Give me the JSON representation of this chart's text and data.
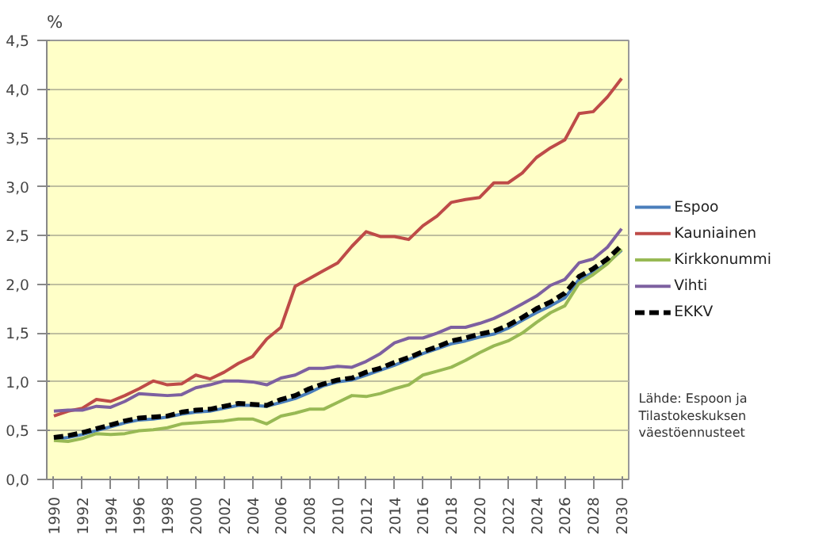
{
  "chart_data": {
    "type": "line",
    "ylabel": "%",
    "x": [
      1990,
      1991,
      1992,
      1993,
      1994,
      1995,
      1996,
      1997,
      1998,
      1999,
      2000,
      2001,
      2002,
      2003,
      2004,
      2005,
      2006,
      2007,
      2008,
      2009,
      2010,
      2011,
      2012,
      2013,
      2014,
      2015,
      2016,
      2017,
      2018,
      2019,
      2020,
      2021,
      2022,
      2023,
      2024,
      2025,
      2026,
      2027,
      2028,
      2029,
      2030
    ],
    "xlim": [
      1989.5,
      2030.5
    ],
    "xticks": [
      1990,
      1992,
      1994,
      1996,
      1998,
      2000,
      2002,
      2004,
      2006,
      2008,
      2010,
      2012,
      2014,
      2016,
      2018,
      2020,
      2022,
      2024,
      2026,
      2028,
      2030
    ],
    "ylim": [
      0,
      4.5
    ],
    "yticks": [
      {
        "value": 0,
        "label": "0,0"
      },
      {
        "value": 0.5,
        "label": "0,5"
      },
      {
        "value": 1,
        "label": "1,0"
      },
      {
        "value": 1.5,
        "label": "1,5"
      },
      {
        "value": 2,
        "label": "2,0"
      },
      {
        "value": 2.5,
        "label": "2,5"
      },
      {
        "value": 3,
        "label": "3,0"
      },
      {
        "value": 3.5,
        "label": "3,5"
      },
      {
        "value": 4,
        "label": "4,0"
      },
      {
        "value": 4.5,
        "label": "4,5"
      }
    ],
    "grid": "y",
    "legend": "right",
    "marker": "none",
    "series": [
      {
        "name": "Espoo",
        "color": "#4a7ebb",
        "values": [
          0.41,
          0.43,
          0.46,
          0.5,
          0.54,
          0.58,
          0.61,
          0.62,
          0.64,
          0.67,
          0.69,
          0.7,
          0.73,
          0.76,
          0.76,
          0.75,
          0.79,
          0.83,
          0.89,
          0.96,
          1.0,
          1.02,
          1.07,
          1.12,
          1.17,
          1.23,
          1.29,
          1.34,
          1.39,
          1.42,
          1.46,
          1.49,
          1.55,
          1.63,
          1.71,
          1.78,
          1.86,
          2.05,
          2.12,
          2.22,
          2.35
        ]
      },
      {
        "name": "Kauniainen",
        "color": "#be4b48",
        "values": [
          0.65,
          0.7,
          0.73,
          0.82,
          0.8,
          0.86,
          0.93,
          1.01,
          0.97,
          0.98,
          1.07,
          1.03,
          1.1,
          1.19,
          1.26,
          1.44,
          1.56,
          1.98,
          2.06,
          2.14,
          2.22,
          2.39,
          2.54,
          2.49,
          2.49,
          2.46,
          2.6,
          2.7,
          2.84,
          2.87,
          2.89,
          3.04,
          3.04,
          3.14,
          3.3,
          3.4,
          3.48,
          3.75,
          3.77,
          3.92,
          4.11
        ]
      },
      {
        "name": "Kirkkonummi",
        "color": "#98b954",
        "values": [
          0.4,
          0.39,
          0.42,
          0.47,
          0.46,
          0.47,
          0.5,
          0.51,
          0.53,
          0.57,
          0.58,
          0.59,
          0.6,
          0.62,
          0.62,
          0.57,
          0.65,
          0.68,
          0.72,
          0.72,
          0.79,
          0.86,
          0.85,
          0.88,
          0.93,
          0.97,
          1.07,
          1.11,
          1.15,
          1.22,
          1.3,
          1.37,
          1.42,
          1.5,
          1.61,
          1.71,
          1.78,
          2.01,
          2.1,
          2.21,
          2.36
        ]
      },
      {
        "name": "Vihti",
        "color": "#7d60a0",
        "values": [
          0.7,
          0.71,
          0.71,
          0.75,
          0.74,
          0.8,
          0.88,
          0.87,
          0.86,
          0.87,
          0.94,
          0.97,
          1.01,
          1.01,
          1.0,
          0.97,
          1.04,
          1.07,
          1.14,
          1.14,
          1.16,
          1.15,
          1.21,
          1.29,
          1.4,
          1.45,
          1.45,
          1.5,
          1.56,
          1.56,
          1.6,
          1.65,
          1.72,
          1.8,
          1.88,
          1.99,
          2.05,
          2.22,
          2.26,
          2.38,
          2.57
        ]
      },
      {
        "name": "EKKV",
        "color": "#000000",
        "line_style": "dashed",
        "values": [
          0.43,
          0.45,
          0.48,
          0.52,
          0.56,
          0.6,
          0.63,
          0.64,
          0.65,
          0.69,
          0.71,
          0.72,
          0.75,
          0.78,
          0.77,
          0.76,
          0.82,
          0.86,
          0.93,
          0.98,
          1.02,
          1.04,
          1.1,
          1.14,
          1.2,
          1.25,
          1.31,
          1.36,
          1.42,
          1.45,
          1.49,
          1.52,
          1.58,
          1.66,
          1.75,
          1.82,
          1.91,
          2.08,
          2.16,
          2.26,
          2.4
        ]
      }
    ],
    "annotations": [
      "Lähde: Espoon ja Tilastokeskuksen väestöennusteet"
    ]
  }
}
